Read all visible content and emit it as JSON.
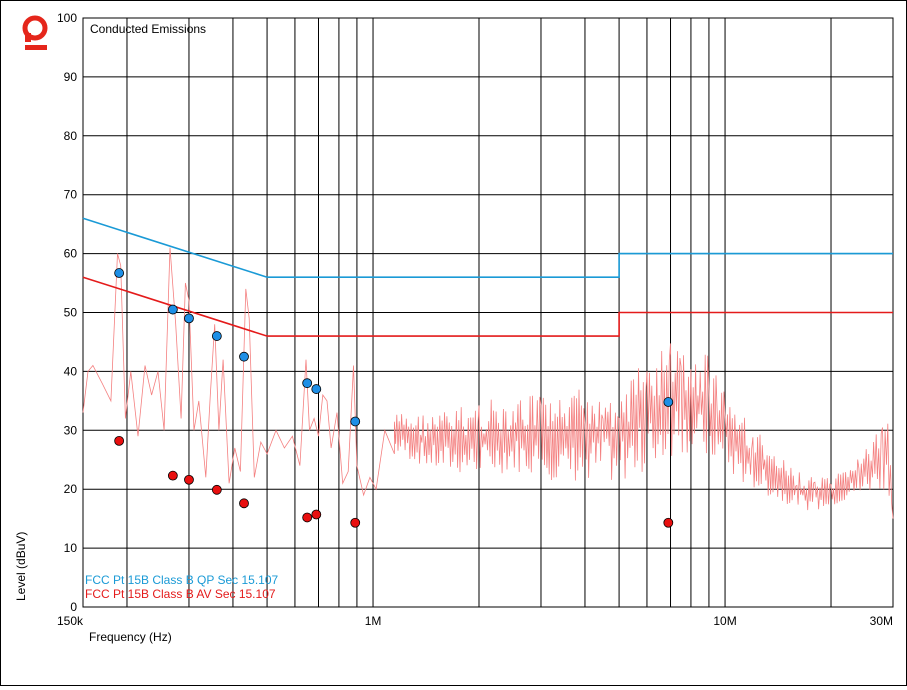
{
  "chart_data": {
    "type": "line",
    "title": "Conducted Emissions",
    "xlabel": "Frequency (Hz)",
    "ylabel": "Level (dBuV)",
    "x_scale": "log",
    "xlim_hz": [
      150000,
      30000000
    ],
    "ylim": [
      0,
      100
    ],
    "y_ticks": [
      0,
      10,
      20,
      30,
      40,
      50,
      60,
      70,
      80,
      90,
      100
    ],
    "x_tick_labels": [
      {
        "value": 150000,
        "label": "150k"
      },
      {
        "value": 1000000,
        "label": "1M"
      },
      {
        "value": 10000000,
        "label": "10M"
      },
      {
        "value": 30000000,
        "label": "30M"
      }
    ],
    "grid": true,
    "legend_position": "bottom-left",
    "series": [
      {
        "name": "FCC Pt 15B Class B QP Sec 15.107",
        "kind": "limit",
        "color": "#1a9ad6",
        "points": [
          [
            150000,
            66
          ],
          [
            500000,
            56
          ],
          [
            5000000,
            56
          ],
          [
            5000000,
            60
          ],
          [
            30000000,
            60
          ]
        ]
      },
      {
        "name": "FCC Pt 15B Class B AV Sec 15.107",
        "kind": "limit",
        "color": "#e41b1b",
        "points": [
          [
            150000,
            56
          ],
          [
            500000,
            46
          ],
          [
            5000000,
            46
          ],
          [
            5000000,
            50
          ],
          [
            30000000,
            50
          ]
        ]
      },
      {
        "kind": "qp_markers",
        "color": "#1e8fe6",
        "points": [
          [
            190000,
            56.7
          ],
          [
            270000,
            50.5
          ],
          [
            300000,
            49
          ],
          [
            360000,
            46
          ],
          [
            430000,
            42.5
          ],
          [
            650000,
            38
          ],
          [
            690000,
            37
          ],
          [
            890000,
            31.5
          ],
          [
            6900000,
            34.8
          ]
        ]
      },
      {
        "kind": "av_markers",
        "color": "#e80f0f",
        "points": [
          [
            190000,
            28.2
          ],
          [
            270000,
            22.3
          ],
          [
            300000,
            21.6
          ],
          [
            360000,
            19.9
          ],
          [
            430000,
            17.6
          ],
          [
            650000,
            15.2
          ],
          [
            690000,
            15.7
          ],
          [
            890000,
            14.3
          ],
          [
            6900000,
            14.3
          ]
        ]
      },
      {
        "kind": "scan_trace",
        "color": "#f48080",
        "points": [
          [
            150000,
            33
          ],
          [
            155000,
            40
          ],
          [
            160000,
            41
          ],
          [
            170000,
            38
          ],
          [
            180000,
            35
          ],
          [
            188000,
            60
          ],
          [
            192000,
            58
          ],
          [
            198000,
            32
          ],
          [
            205000,
            40
          ],
          [
            215000,
            29
          ],
          [
            225000,
            41
          ],
          [
            235000,
            36
          ],
          [
            245000,
            40
          ],
          [
            255000,
            30
          ],
          [
            265000,
            61
          ],
          [
            275000,
            48
          ],
          [
            285000,
            32
          ],
          [
            293000,
            55
          ],
          [
            300000,
            52
          ],
          [
            310000,
            30
          ],
          [
            320000,
            35
          ],
          [
            335000,
            22
          ],
          [
            345000,
            36
          ],
          [
            355000,
            48
          ],
          [
            365000,
            30
          ],
          [
            375000,
            42
          ],
          [
            390000,
            21
          ],
          [
            405000,
            27
          ],
          [
            420000,
            23
          ],
          [
            435000,
            54
          ],
          [
            445000,
            49
          ],
          [
            460000,
            22
          ],
          [
            480000,
            28
          ],
          [
            500000,
            26
          ],
          [
            530000,
            30
          ],
          [
            560000,
            27
          ],
          [
            590000,
            29
          ],
          [
            620000,
            24
          ],
          [
            645000,
            42
          ],
          [
            660000,
            30
          ],
          [
            680000,
            32
          ],
          [
            700000,
            29
          ],
          [
            720000,
            36
          ],
          [
            740000,
            35
          ],
          [
            760000,
            27
          ],
          [
            790000,
            33
          ],
          [
            820000,
            21
          ],
          [
            850000,
            23
          ],
          [
            880000,
            41
          ],
          [
            900000,
            24
          ],
          [
            940000,
            19
          ],
          [
            980000,
            22
          ],
          [
            1020000,
            20
          ],
          [
            1080000,
            30
          ],
          [
            1150000,
            26
          ]
        ],
        "envelope": [
          [
            1150000,
            26,
            33
          ],
          [
            1500000,
            23,
            33
          ],
          [
            2000000,
            22,
            35
          ],
          [
            2500000,
            23,
            36
          ],
          [
            3000000,
            22,
            36
          ],
          [
            3500000,
            21,
            35
          ],
          [
            4000000,
            21,
            38
          ],
          [
            4500000,
            21,
            38
          ],
          [
            5000000,
            21,
            38
          ],
          [
            5500000,
            22,
            40
          ],
          [
            6000000,
            23,
            42
          ],
          [
            6500000,
            24,
            44
          ],
          [
            7000000,
            25,
            45
          ],
          [
            7500000,
            26,
            44
          ],
          [
            8000000,
            26,
            43
          ],
          [
            8500000,
            25,
            43
          ],
          [
            9000000,
            24,
            44
          ],
          [
            9500000,
            23,
            40
          ],
          [
            10000000,
            23,
            37
          ],
          [
            11000000,
            21,
            34
          ],
          [
            12000000,
            20,
            31
          ],
          [
            14000000,
            18,
            26
          ],
          [
            16000000,
            17,
            23
          ],
          [
            18000000,
            16,
            22
          ],
          [
            20000000,
            17,
            22
          ],
          [
            22000000,
            18,
            24
          ],
          [
            24000000,
            19,
            26
          ],
          [
            26000000,
            19,
            28
          ],
          [
            28000000,
            20,
            32
          ],
          [
            29000000,
            20,
            33
          ],
          [
            30000000,
            15,
            19
          ]
        ]
      }
    ]
  },
  "colors": {
    "logo": "#e5261b",
    "grid": "#000000"
  },
  "logo_icon": "brand-logo-icon"
}
